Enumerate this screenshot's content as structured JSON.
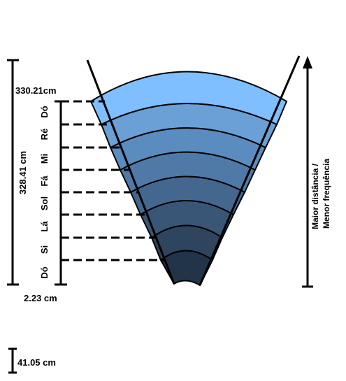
{
  "measurements": {
    "top_total": "330.21cm",
    "span": "328.41 cm",
    "bottom_offset": "2.23 cm",
    "scale_bar": "41.05 cm"
  },
  "notes": [
    "Dó",
    "Ré",
    "Mi",
    "Fá",
    "Sol",
    "Lá",
    "Si",
    "Dó"
  ],
  "arrow_label": {
    "line1": "Maior distância /",
    "line2": "Menor frequência"
  },
  "colors": {
    "band_1": "#7fbfff",
    "band_2": "#6aa0d6",
    "band_3": "#5b8cc0",
    "band_4": "#4f7aa7",
    "band_5": "#446790",
    "band_6": "#3a5677",
    "band_7": "#2f455f",
    "band_8": "#223447",
    "band_9": "#1a2633"
  }
}
